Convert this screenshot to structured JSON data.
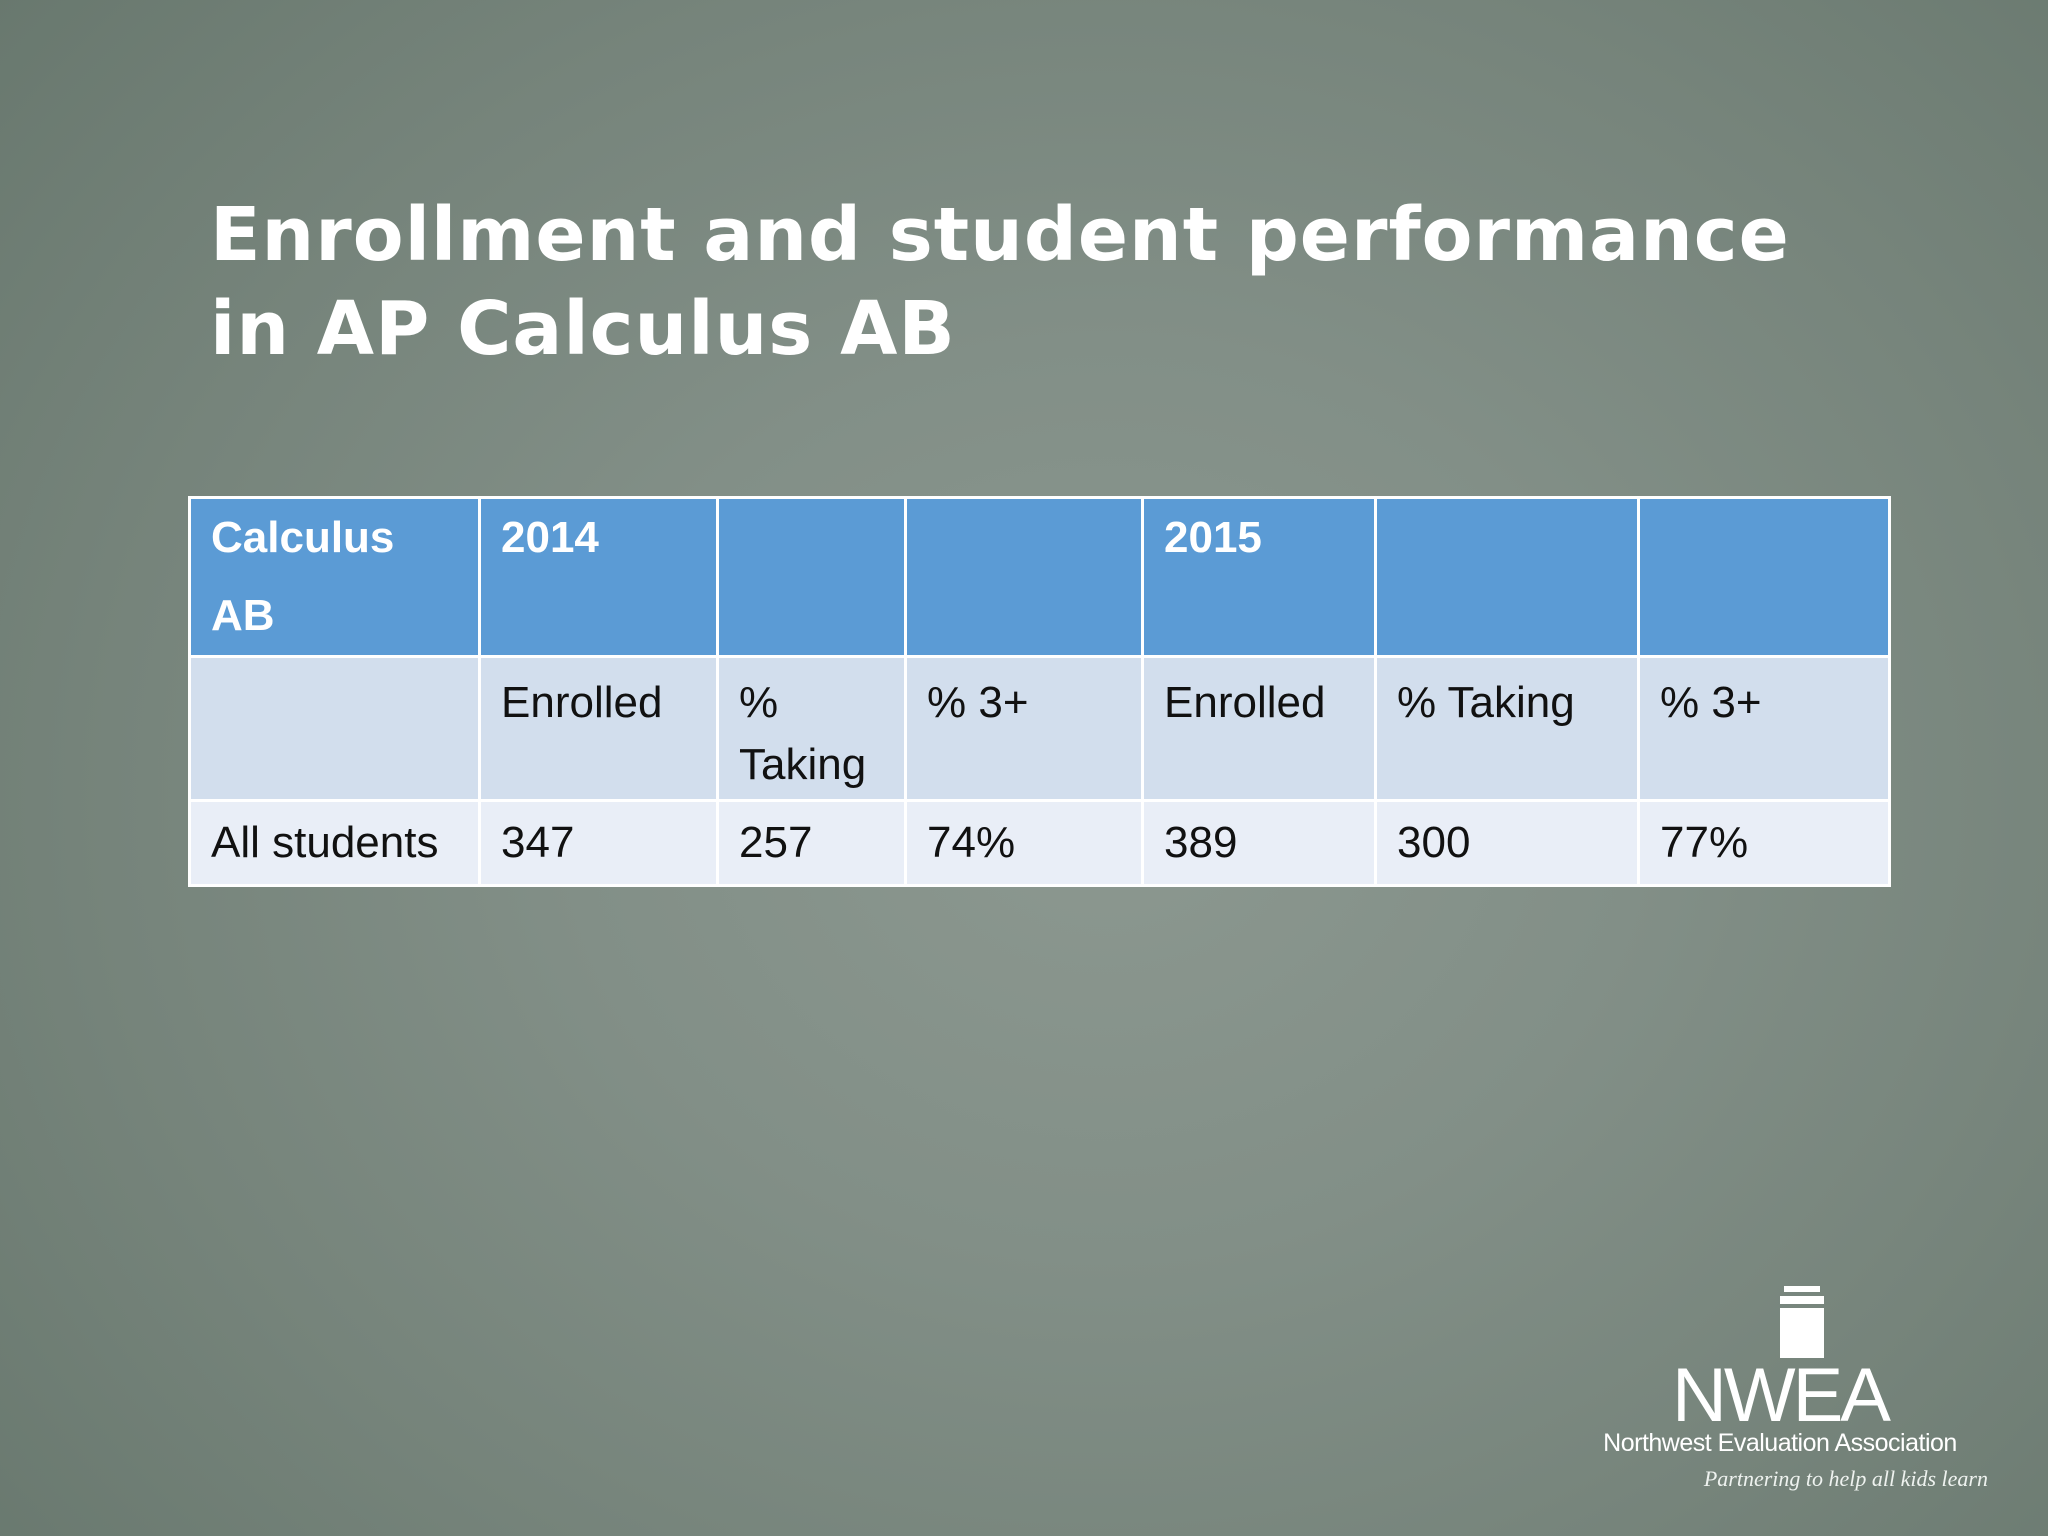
{
  "slide": {
    "title": "Enrollment and student performance in AP Calculus AB"
  },
  "table": {
    "header": [
      "Calculus AB",
      "2014",
      "",
      "",
      "2015",
      "",
      ""
    ],
    "labels": [
      "",
      "Enrolled",
      "% Taking",
      "% 3+",
      "Enrolled",
      "% Taking",
      "% 3+"
    ],
    "rows": [
      [
        "All students",
        "347",
        "257",
        "74%",
        "389",
        "300",
        "77%"
      ]
    ]
  },
  "logo": {
    "wordmark": "NWEA",
    "organization": "Northwest Evaluation Association",
    "tagline": "Partnering to help all kids learn"
  },
  "colors": {
    "header_blue": "#5b9bd5",
    "label_row": "#d2deed",
    "value_row": "#e9eef7"
  }
}
